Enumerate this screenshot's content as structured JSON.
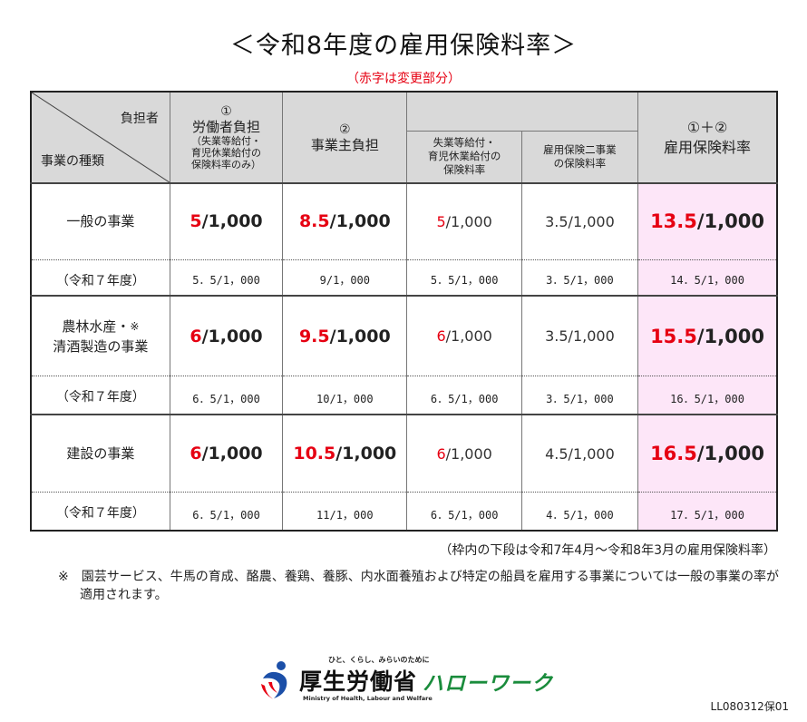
{
  "title": "＜令和8年度の雇用保険料率＞",
  "subtitle": "（赤字は変更部分）",
  "header": {
    "diagonal_top": "負担者",
    "diagonal_bottom": "事業の種類",
    "worker": {
      "num": "①",
      "label": "労働者負担",
      "note1": "（失業等給付・",
      "note2": "育児休業給付の",
      "note3": "保険料率のみ）"
    },
    "employer": {
      "num": "②",
      "label": "事業主負担"
    },
    "employer_sub1": {
      "line1": "失業等給付・",
      "line2": "育児休業給付の",
      "line3": "保険料率"
    },
    "employer_sub2": {
      "line1": "雇用保険二事業",
      "line2": "の保険料率"
    },
    "total": {
      "line1": "①＋②",
      "line2": "雇用保険料率"
    }
  },
  "rows": [
    {
      "label1": "一般の事業",
      "label2": "",
      "mark": "",
      "worker": {
        "red": "5",
        "rest": "/1,000"
      },
      "employer": {
        "red": "8.5",
        "rest": "/1,000"
      },
      "sub1": {
        "red": "5",
        "rest": "/1,000"
      },
      "sub2": "3.5/1,000",
      "total": {
        "red": "13.5",
        "rest": "/1,000"
      },
      "prev_label": "（令和７年度）",
      "prev": [
        "5．5/1，000",
        "9/1，000",
        "5．5/1，000",
        "3．5/1，000",
        "14．5/1，000"
      ]
    },
    {
      "label1": "農林水産・",
      "label2": "清酒製造の事業",
      "mark": "※",
      "worker": {
        "red": "6",
        "rest": "/1,000"
      },
      "employer": {
        "red": "9.5",
        "rest": "/1,000"
      },
      "sub1": {
        "red": "6",
        "rest": "/1,000"
      },
      "sub2": "3.5/1,000",
      "total": {
        "red": "15.5",
        "rest": "/1,000"
      },
      "prev_label": "（令和７年度）",
      "prev": [
        "6．5/1，000",
        "10/1，000",
        "6．5/1，000",
        "3．5/1，000",
        "16．5/1，000"
      ]
    },
    {
      "label1": "建設の事業",
      "label2": "",
      "mark": "",
      "worker": {
        "red": "6",
        "rest": "/1,000"
      },
      "employer": {
        "red": "10.5",
        "rest": "/1,000"
      },
      "sub1": {
        "red": "6",
        "rest": "/1,000"
      },
      "sub2": "4.5/1,000",
      "total": {
        "red": "16.5",
        "rest": "/1,000"
      },
      "prev_label": "（令和７年度）",
      "prev": [
        "6．5/1，000",
        "11/1，000",
        "6．5/1，000",
        "4．5/1，000",
        "17．5/1，000"
      ]
    }
  ],
  "footnote_period": "（枠内の下段は令和7年4月～令和8年3月の雇用保険料率）",
  "footnote_note": "※　園芸サービス、牛馬の育成、酪農、養鶏、養豚、内水面養殖および特定の船員を雇用する事業については一般の事業の率が適用されます。",
  "logo": {
    "tagline": "ひと、くらし、みらいのために",
    "ministry": "厚生労働省",
    "ministry_en": "Ministry of Health, Labour and Welfare",
    "hellowork": "ハローワーク"
  },
  "doc_code": "LL080312保01",
  "colors": {
    "red": "#e60012",
    "header_bg": "#d9d9d9",
    "total_bg": "#fde6f8",
    "hellowork_green": "#1a8c3c"
  }
}
